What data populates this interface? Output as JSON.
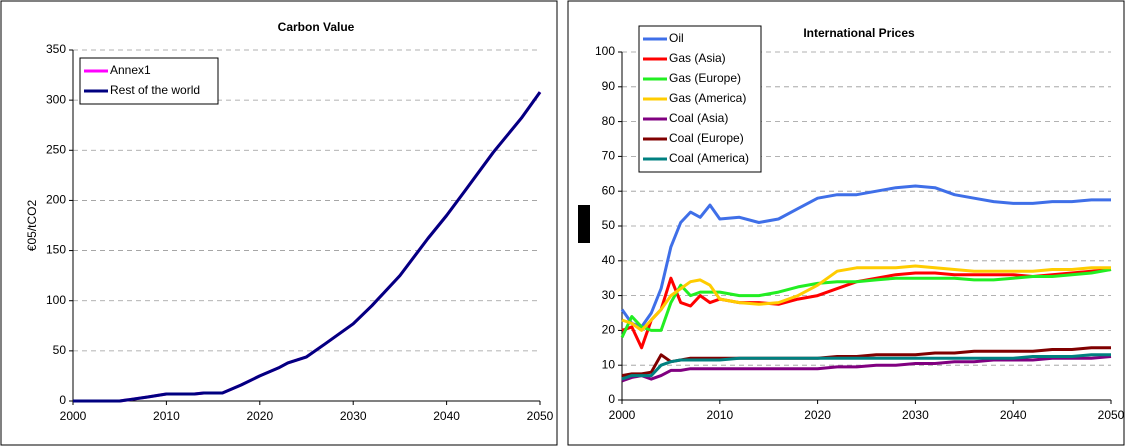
{
  "chart_data": [
    {
      "type": "line",
      "title": "Carbon Value",
      "ylabel": "€05/tCO2",
      "x": [
        2000,
        2005,
        2008,
        2010,
        2013,
        2014,
        2016,
        2018,
        2020,
        2022,
        2023,
        2025,
        2027,
        2030,
        2032,
        2035,
        2038,
        2040,
        2042,
        2045,
        2048,
        2050
      ],
      "series": [
        {
          "name": "Annex1",
          "color": "#ff00ff",
          "values": [
            0,
            0,
            4,
            7,
            7,
            8,
            8,
            16,
            25,
            33,
            38,
            44,
            57,
            77,
            95,
            125,
            162,
            185,
            210,
            248,
            282,
            308
          ]
        },
        {
          "name": "Rest of the world",
          "color": "#000080",
          "values": [
            0,
            0,
            4,
            7,
            7,
            8,
            8,
            16,
            25,
            33,
            38,
            44,
            57,
            77,
            95,
            125,
            162,
            185,
            210,
            248,
            282,
            308
          ]
        }
      ],
      "xlim": [
        2000,
        2050
      ],
      "xticks": [
        2000,
        2010,
        2020,
        2030,
        2040,
        2050
      ],
      "ylim": [
        0,
        350
      ],
      "yticks": [
        0,
        50,
        100,
        150,
        200,
        250,
        300,
        350
      ],
      "grid": true,
      "legend": "upper left"
    },
    {
      "type": "line",
      "title": "International Prices",
      "x": [
        2000,
        2001,
        2002,
        2003,
        2004,
        2005,
        2006,
        2007,
        2008,
        2009,
        2010,
        2012,
        2014,
        2016,
        2018,
        2020,
        2022,
        2024,
        2026,
        2028,
        2030,
        2032,
        2034,
        2036,
        2038,
        2040,
        2042,
        2044,
        2046,
        2048,
        2050
      ],
      "series": [
        {
          "name": "Oil",
          "color": "#3f6fe8",
          "values": [
            26,
            22,
            21,
            25,
            32,
            44,
            51,
            54,
            52.5,
            56,
            52,
            52.5,
            51,
            52,
            55,
            58,
            59,
            59,
            60,
            61,
            61.5,
            61,
            59,
            58,
            57,
            56.5,
            56.5,
            57,
            57,
            57.5,
            57.5
          ]
        },
        {
          "name": "Gas (Asia)",
          "color": "#ff0000",
          "values": [
            20,
            21,
            15,
            23,
            26,
            35,
            28,
            27,
            30,
            28,
            29,
            28,
            28,
            27.5,
            29,
            30,
            32,
            34,
            35,
            36,
            36.5,
            36.5,
            36,
            36,
            36,
            36,
            35.5,
            36,
            36.5,
            37,
            37.5
          ]
        },
        {
          "name": "Gas (Europe)",
          "color": "#22ee22",
          "values": [
            18,
            24,
            21,
            20,
            20,
            28,
            33,
            30,
            31,
            31,
            31,
            30,
            30,
            31,
            32.5,
            33.5,
            34,
            34,
            34.5,
            35,
            35,
            35,
            35,
            34.5,
            34.5,
            35,
            35.5,
            35.5,
            36,
            36.5,
            37.5
          ]
        },
        {
          "name": "Gas (America)",
          "color": "#ffcc00",
          "values": [
            23,
            22,
            20,
            23,
            26,
            30,
            32,
            34,
            34.5,
            33,
            29,
            28,
            27.5,
            28,
            30,
            33,
            37,
            38,
            38,
            38,
            38.5,
            38,
            37.5,
            37,
            37,
            37,
            37,
            37.5,
            37.5,
            38,
            38
          ]
        },
        {
          "name": "Coal (Asia)",
          "color": "#800080",
          "values": [
            5.5,
            6.5,
            7,
            6,
            7,
            8.5,
            8.5,
            9,
            9,
            9,
            9,
            9,
            9,
            9,
            9,
            9,
            9.5,
            9.5,
            10,
            10,
            10.5,
            10.5,
            11,
            11,
            11.5,
            11.5,
            11.5,
            12,
            12,
            12,
            12.5
          ]
        },
        {
          "name": "Coal (Europe)",
          "color": "#800000",
          "values": [
            7,
            7.5,
            7.5,
            8,
            13,
            11,
            11.5,
            12,
            12,
            12,
            12,
            12,
            12,
            12,
            12,
            12,
            12.5,
            12.5,
            13,
            13,
            13,
            13.5,
            13.5,
            14,
            14,
            14,
            14,
            14.5,
            14.5,
            15,
            15
          ]
        },
        {
          "name": "Coal (America)",
          "color": "#008080",
          "values": [
            6,
            7,
            7,
            7,
            10,
            11,
            11.5,
            11.5,
            11.5,
            11.5,
            11.5,
            12,
            12,
            12,
            12,
            12,
            12,
            12,
            12,
            12,
            12,
            12,
            12,
            12,
            12,
            12,
            12.5,
            12.5,
            12.5,
            13,
            13
          ]
        }
      ],
      "xlim": [
        2000,
        2050
      ],
      "xticks": [
        2000,
        2010,
        2020,
        2030,
        2040,
        2050
      ],
      "ylim": [
        0,
        100
      ],
      "yticks": [
        0,
        10,
        20,
        30,
        40,
        50,
        60,
        70,
        80,
        90,
        100
      ],
      "grid": true,
      "legend": "upper left"
    }
  ]
}
